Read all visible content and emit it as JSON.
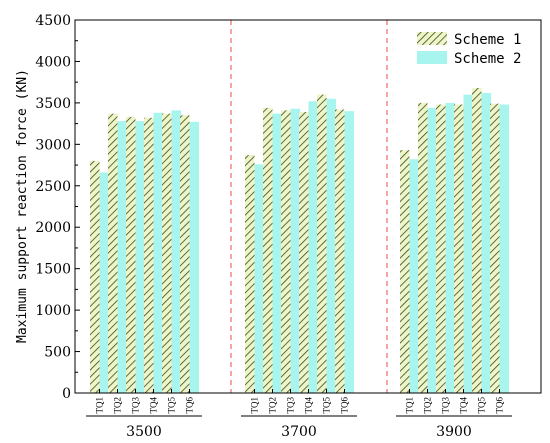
{
  "chart_data": {
    "type": "bar",
    "ylabel": "Maximum support reaction force (KN)",
    "ylim": [
      0,
      4500
    ],
    "yticks": [
      0,
      500,
      1000,
      1500,
      2000,
      2500,
      3000,
      3500,
      4000,
      4500
    ],
    "grid": false,
    "legend_position": "top-right",
    "groups": [
      {
        "label": "3500",
        "categories": [
          "TQ1",
          "TQ2",
          "TQ3",
          "TQ4",
          "TQ5",
          "TQ6"
        ],
        "series": [
          {
            "name": "Scheme 1",
            "values": [
              2800,
              3370,
              3330,
              3320,
              3370,
              3350
            ]
          },
          {
            "name": "Scheme 2",
            "values": [
              2660,
              3280,
              3280,
              3380,
              3410,
              3270
            ]
          }
        ]
      },
      {
        "label": "3700",
        "categories": [
          "TQ1",
          "TQ2",
          "TQ3",
          "TQ4",
          "TQ5",
          "TQ6"
        ],
        "series": [
          {
            "name": "Scheme 1",
            "values": [
              2870,
              3440,
              3410,
              3390,
              3600,
              3420
            ]
          },
          {
            "name": "Scheme 2",
            "values": [
              2760,
              3370,
              3430,
              3520,
              3550,
              3400
            ]
          }
        ]
      },
      {
        "label": "3900",
        "categories": [
          "TQ1",
          "TQ2",
          "TQ3",
          "TQ4",
          "TQ5",
          "TQ6"
        ],
        "series": [
          {
            "name": "Scheme 1",
            "values": [
              2930,
              3500,
              3480,
              3480,
              3680,
              3490
            ]
          },
          {
            "name": "Scheme 2",
            "values": [
              2820,
              3440,
              3500,
              3600,
              3620,
              3480
            ]
          }
        ]
      }
    ],
    "legend": [
      "Scheme 1",
      "Scheme 2"
    ],
    "colors": {
      "scheme1_fill": "#eef5c8",
      "scheme1_hatch": "#3a4a1a",
      "scheme2_fill": "#a8f5f0",
      "separator": "#e84a4a"
    }
  }
}
